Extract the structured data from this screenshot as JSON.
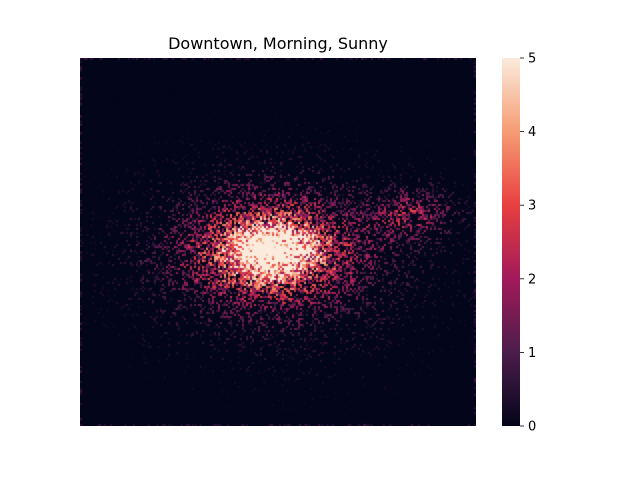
{
  "chart_data": {
    "type": "heatmap",
    "title": "Downtown, Morning, Sunny",
    "xlabel": "",
    "ylabel": "",
    "x_ticks_visible": false,
    "y_ticks_visible": false,
    "colorbar": {
      "range": [
        0,
        5
      ],
      "ticks": [
        "0",
        "1",
        "2",
        "3",
        "4",
        "5"
      ],
      "colormap": "rocket",
      "colors": [
        "#03051a",
        "#4c1d4b",
        "#a11a5b",
        "#e83f3f",
        "#f69c73",
        "#faebdd"
      ]
    },
    "hotspots": [
      {
        "cx": 0.48,
        "cy": 0.52,
        "value": 5.0,
        "spread": 0.045
      },
      {
        "cx": 0.48,
        "cy": 0.52,
        "value": 2.5,
        "spread": 0.14
      },
      {
        "cx": 0.84,
        "cy": 0.42,
        "value": 1.2,
        "spread": 0.07
      },
      {
        "cx": 0.5,
        "cy": 0.55,
        "value": 0.6,
        "spread": 0.28
      }
    ],
    "background_value": 0
  }
}
